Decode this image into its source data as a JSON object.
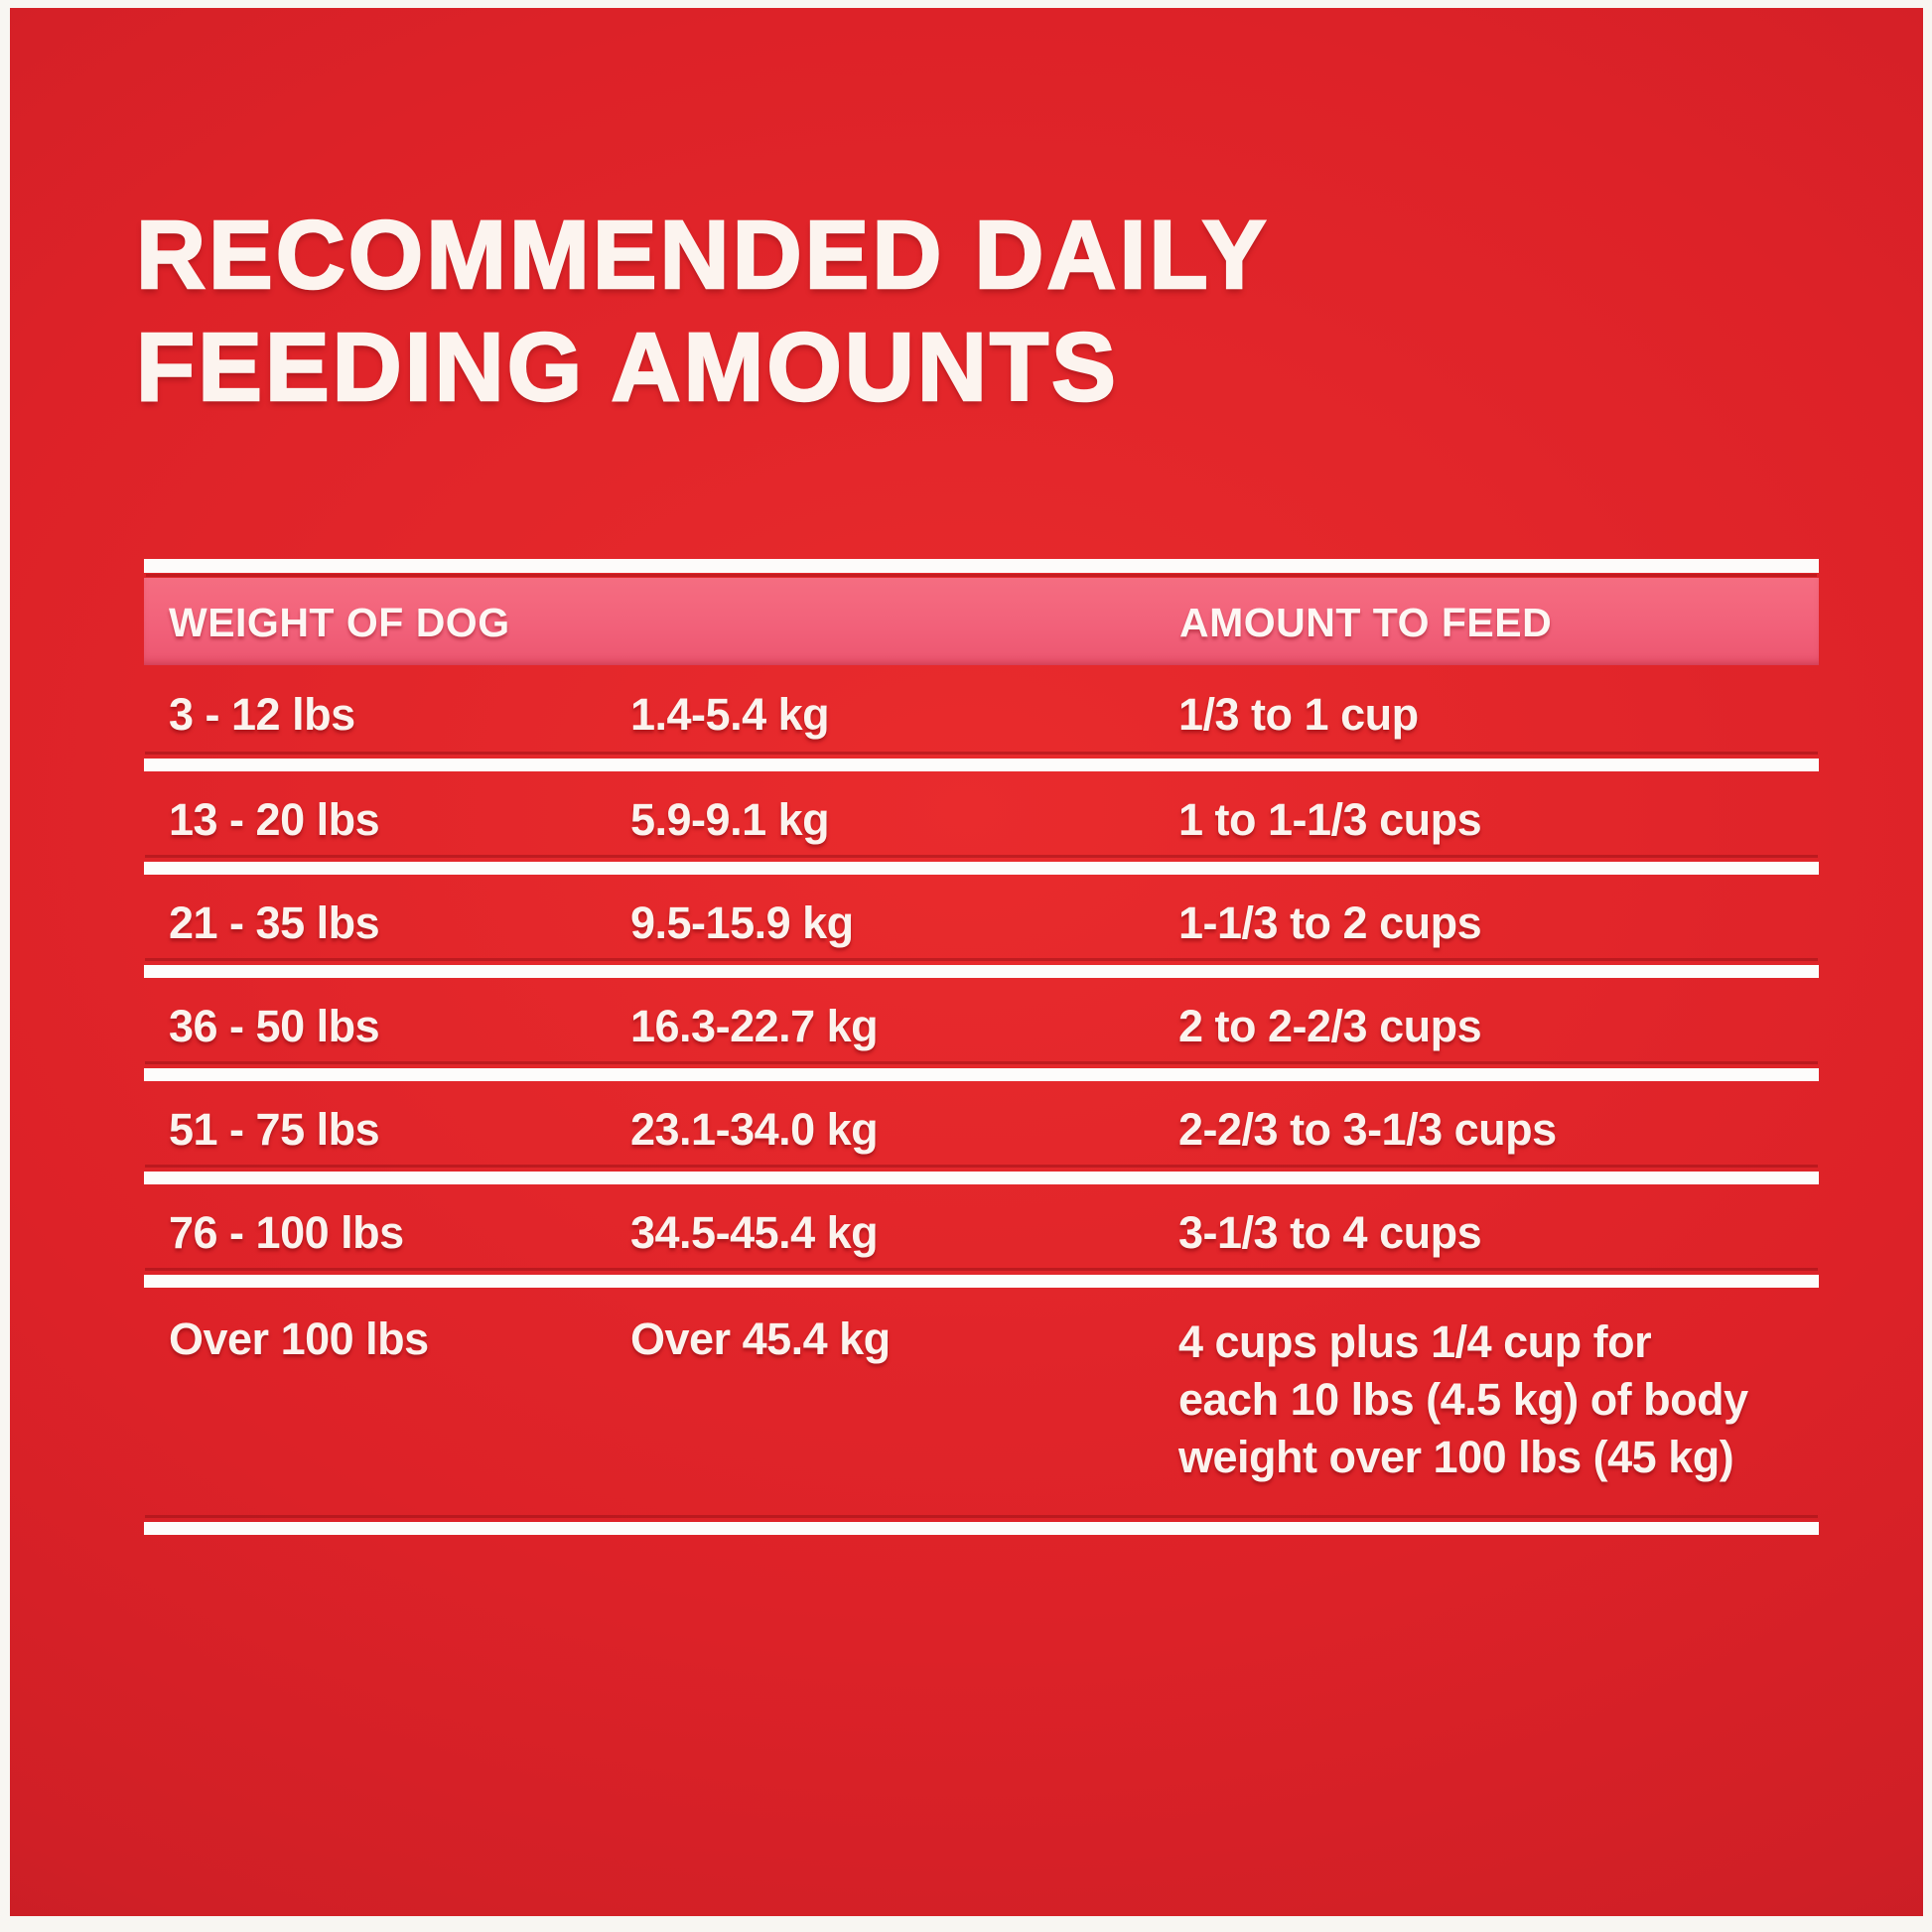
{
  "title": {
    "line1": "RECOMMENDED DAILY",
    "line2": "FEEDING AMOUNTS"
  },
  "table": {
    "header": {
      "weight": "WEIGHT OF DOG",
      "amount": "AMOUNT TO FEED"
    },
    "rows": [
      {
        "weight_lbs": "3 - 12 lbs",
        "weight_kg": "1.4-5.4 kg",
        "amount": "1/3 to 1 cup"
      },
      {
        "weight_lbs": "13 - 20 lbs",
        "weight_kg": "5.9-9.1 kg",
        "amount": "1 to 1-1/3 cups"
      },
      {
        "weight_lbs": "21 - 35 lbs",
        "weight_kg": "9.5-15.9 kg",
        "amount": "1-1/3 to 2 cups"
      },
      {
        "weight_lbs": "36 - 50 lbs",
        "weight_kg": "16.3-22.7 kg",
        "amount": "2 to 2-2/3 cups"
      },
      {
        "weight_lbs": "51 - 75 lbs",
        "weight_kg": "23.1-34.0 kg",
        "amount": "2-2/3 to 3-1/3 cups"
      },
      {
        "weight_lbs": "76 - 100 lbs",
        "weight_kg": "34.5-45.4 kg",
        "amount": "3-1/3 to 4 cups"
      },
      {
        "weight_lbs": "Over 100 lbs",
        "weight_kg": "Over 45.4 kg",
        "amount": "4 cups plus 1/4 cup for each 10 lbs (4.5 kg) of body weight over 100 lbs (45 kg)",
        "amount_lines": [
          "4 cups plus 1/4 cup for",
          "each 10 lbs (4.5 kg) of body",
          "weight over 100 lbs (45 kg)"
        ]
      }
    ]
  },
  "colors": {
    "background_red": "#d92127",
    "background_red_bright": "#e92b2d",
    "background_red_dark": "#a01920",
    "header_band_pink": "#f2617a",
    "text_white": "#fbf3ee",
    "divider_white": "#fdfcfb",
    "page_border_white": "#f8f6f2"
  }
}
